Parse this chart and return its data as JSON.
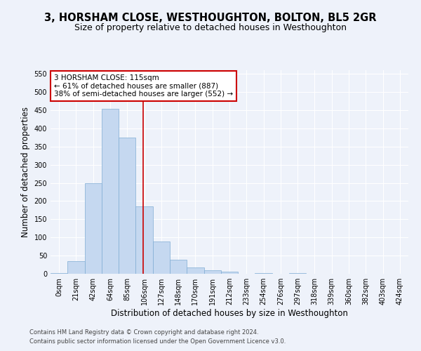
{
  "title": "3, HORSHAM CLOSE, WESTHOUGHTON, BOLTON, BL5 2GR",
  "subtitle": "Size of property relative to detached houses in Westhoughton",
  "xlabel": "Distribution of detached houses by size in Westhoughton",
  "ylabel": "Number of detached properties",
  "footer_line1": "Contains HM Land Registry data © Crown copyright and database right 2024.",
  "footer_line2": "Contains public sector information licensed under the Open Government Licence v3.0.",
  "categories": [
    "0sqm",
    "21sqm",
    "42sqm",
    "64sqm",
    "85sqm",
    "106sqm",
    "127sqm",
    "148sqm",
    "170sqm",
    "191sqm",
    "212sqm",
    "233sqm",
    "254sqm",
    "276sqm",
    "297sqm",
    "318sqm",
    "339sqm",
    "360sqm",
    "382sqm",
    "403sqm",
    "424sqm"
  ],
  "bar_heights": [
    2,
    35,
    250,
    453,
    375,
    185,
    88,
    38,
    18,
    10,
    5,
    0,
    2,
    0,
    2,
    0,
    0,
    0,
    0,
    0,
    0
  ],
  "bar_color": "#c5d8f0",
  "bar_edge_color": "#7fadd4",
  "property_line_x": 5.43,
  "annotation_text": "3 HORSHAM CLOSE: 115sqm\n← 61% of detached houses are smaller (887)\n38% of semi-detached houses are larger (552) →",
  "annotation_box_color": "#ffffff",
  "annotation_box_edge_color": "#cc0000",
  "line_color": "#cc0000",
  "ylim": [
    0,
    560
  ],
  "yticks": [
    0,
    50,
    100,
    150,
    200,
    250,
    300,
    350,
    400,
    450,
    500,
    550
  ],
  "background_color": "#eef2fa",
  "grid_color": "#ffffff",
  "title_fontsize": 10.5,
  "subtitle_fontsize": 9,
  "axis_label_fontsize": 8.5,
  "tick_fontsize": 7,
  "annotation_fontsize": 7.5,
  "footer_fontsize": 6
}
